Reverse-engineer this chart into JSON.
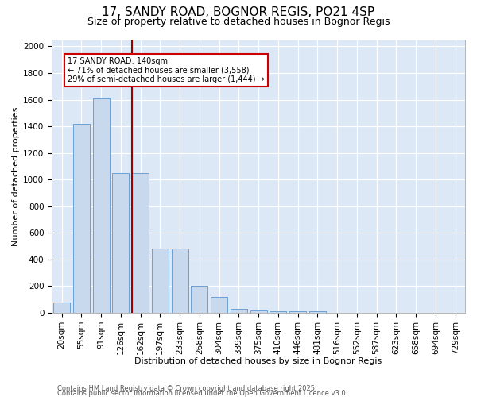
{
  "title1": "17, SANDY ROAD, BOGNOR REGIS, PO21 4SP",
  "title2": "Size of property relative to detached houses in Bognor Regis",
  "xlabel": "Distribution of detached houses by size in Bognor Regis",
  "ylabel": "Number of detached properties",
  "categories": [
    "20sqm",
    "55sqm",
    "91sqm",
    "126sqm",
    "162sqm",
    "197sqm",
    "233sqm",
    "268sqm",
    "304sqm",
    "339sqm",
    "375sqm",
    "410sqm",
    "446sqm",
    "481sqm",
    "516sqm",
    "552sqm",
    "587sqm",
    "623sqm",
    "658sqm",
    "694sqm",
    "729sqm"
  ],
  "values": [
    80,
    1420,
    1610,
    1050,
    1050,
    480,
    480,
    200,
    120,
    30,
    20,
    10,
    10,
    10,
    0,
    0,
    0,
    0,
    0,
    0,
    0
  ],
  "bar_color": "#c8d9ee",
  "bar_edgecolor": "#6b9fd4",
  "vline_color": "#990000",
  "vline_index": 4,
  "annotation_title": "17 SANDY ROAD: 140sqm",
  "annotation_line1": "← 71% of detached houses are smaller (3,558)",
  "annotation_line2": "29% of semi-detached houses are larger (1,444) →",
  "ann_box_edgecolor": "#cc0000",
  "ylim_max": 2050,
  "yticks": [
    0,
    200,
    400,
    600,
    800,
    1000,
    1200,
    1400,
    1600,
    1800,
    2000
  ],
  "plot_bgcolor": "#dce8f5",
  "footer1": "Contains HM Land Registry data © Crown copyright and database right 2025.",
  "footer2": "Contains public sector information licensed under the Open Government Licence v3.0.",
  "title1_fontsize": 11,
  "title2_fontsize": 9,
  "axis_label_fontsize": 8,
  "tick_fontsize": 7.5,
  "ann_fontsize": 7,
  "footer_fontsize": 6
}
